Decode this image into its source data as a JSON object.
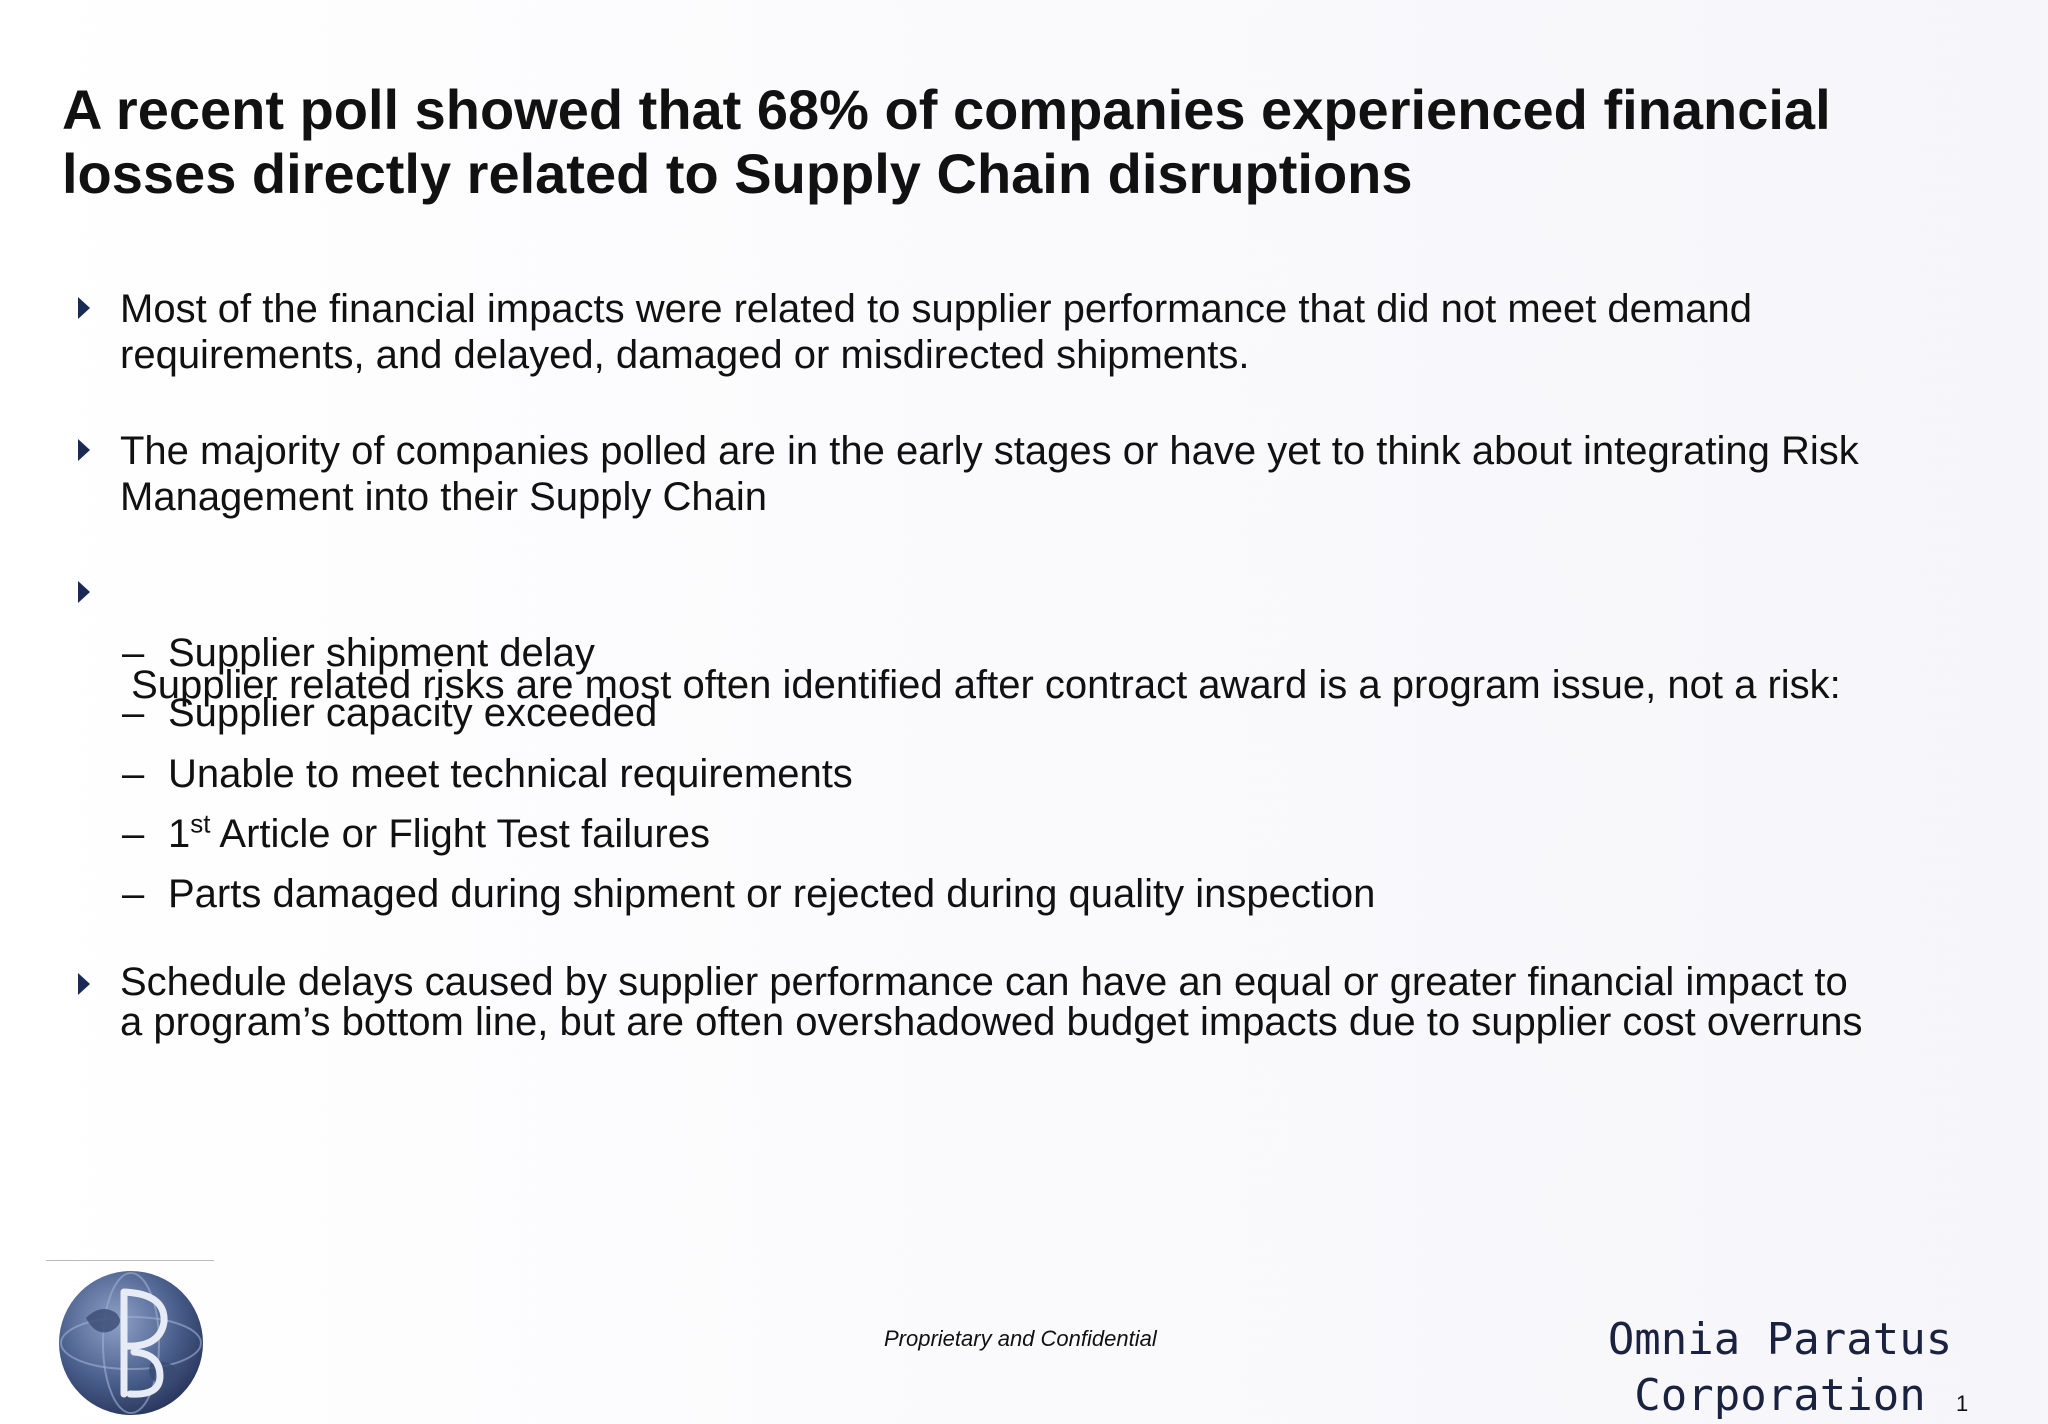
{
  "slide": {
    "title_lines": [
      "A recent poll showed that 68% of companies experienced financial",
      "losses directly related to Supply Chain disruptions"
    ],
    "bullets": [
      {
        "lines": [
          "Most of the financial impacts were related to supplier performance that did not meet demand",
          "requirements, and delayed, damaged or misdirected shipments."
        ]
      },
      {
        "lines": [
          "The majority of companies polled are in the early stages or have yet to think about integrating Risk",
          "Management into their Supply Chain"
        ]
      },
      {
        "lines": [
          " Supplier related risks are most often identified after contract award is a program issue, not a risk:"
        ],
        "subitems": [
          {
            "text": "Supplier shipment delay"
          },
          {
            "pre": "1",
            "sup": "st",
            "post": " Article or Flight Test failures"
          },
          {
            "text": "Supplier capacity exceeded"
          },
          {
            "text": "Unable to meet technical requirements"
          },
          {
            "text": "Parts damaged during shipment or rejected during quality inspection"
          }
        ]
      },
      {
        "lines": [
          "Schedule delays caused by supplier performance can have an equal or greater financial impact to",
          "a program’s bottom line, but are often overshadowed budget impacts due to supplier cost overruns"
        ]
      }
    ],
    "sub_dash": "–"
  },
  "footer": {
    "confidential": "Proprietary and Confidential",
    "company_lines": [
      "Omnia Paratus",
      "Corporation"
    ],
    "page_number": "1",
    "logo_icon": "omnia-paratus-globe-logo"
  },
  "colors": {
    "bullet_marker": "#1b2a55",
    "company_text": "#1a2240",
    "logo_blue": "#4a5f8c"
  }
}
